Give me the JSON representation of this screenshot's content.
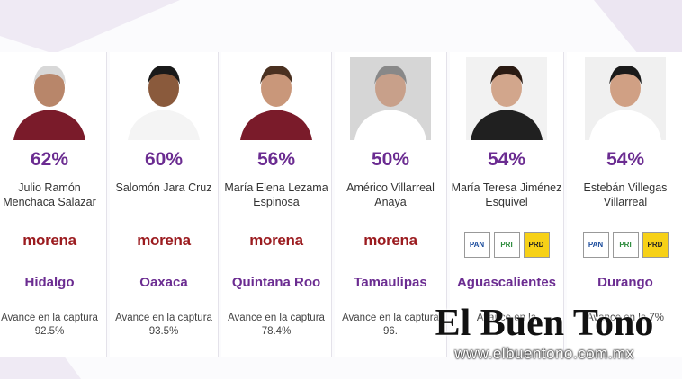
{
  "cards": [
    {
      "percent": "62%",
      "name": "Julio Ramón Menchaca Salazar",
      "parties": [
        "morena"
      ],
      "state": "Hidalgo",
      "avance": "Avance en la captura 92.5%"
    },
    {
      "percent": "60%",
      "name": "Salomón Jara Cruz",
      "parties": [
        "morena"
      ],
      "state": "Oaxaca",
      "avance": "Avance en la captura 93.5%"
    },
    {
      "percent": "56%",
      "name": "María Elena Lezama Espinosa",
      "parties": [
        "morena"
      ],
      "state": "Quintana Roo",
      "avance": "Avance en la captura 78.4%"
    },
    {
      "percent": "50%",
      "name": "Américo Villarreal Anaya",
      "parties": [
        "morena"
      ],
      "state": "Tamaulipas",
      "avance": "Avance en la captura 96."
    },
    {
      "percent": "54%",
      "name": "María Teresa Jiménez Esquivel",
      "parties": [
        "PAN",
        "PRI",
        "PRD"
      ],
      "state": "Aguascalientes",
      "avance": "Avance en la"
    },
    {
      "percent": "54%",
      "name": "Estebán Villegas Villarreal",
      "parties": [
        "PAN",
        "PRI",
        "PRD"
      ],
      "state": "Durango",
      "avance": "Avance en la 7%"
    }
  ],
  "watermark": {
    "title": "El Buen Tono",
    "url": "www.elbuentono.com.mx"
  }
}
